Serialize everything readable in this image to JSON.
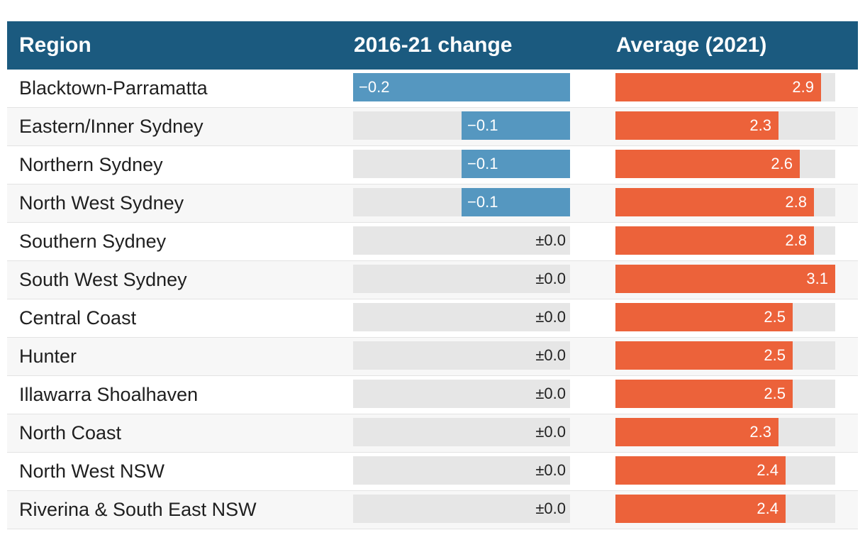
{
  "header": {
    "region": "Region",
    "change": "2016-21 change",
    "average": "Average (2021)"
  },
  "colors": {
    "header_bg": "#1b5a7f",
    "negative_bar": "#5597c0",
    "average_bar": "#ec623a",
    "track": "#e6e6e6"
  },
  "chart_data": {
    "type": "table",
    "columns": [
      "Region",
      "2016-21 change",
      "Average (2021)"
    ],
    "change_range": [
      -0.2,
      0
    ],
    "average_range": [
      0,
      3.1
    ],
    "rows": [
      {
        "region": "Blacktown-Parramatta",
        "change": -0.2,
        "change_label": "−0.2",
        "average": 2.9,
        "average_label": "2.9"
      },
      {
        "region": "Eastern/Inner Sydney",
        "change": -0.1,
        "change_label": "−0.1",
        "average": 2.3,
        "average_label": "2.3"
      },
      {
        "region": "Northern Sydney",
        "change": -0.1,
        "change_label": "−0.1",
        "average": 2.6,
        "average_label": "2.6"
      },
      {
        "region": "North West Sydney",
        "change": -0.1,
        "change_label": "−0.1",
        "average": 2.8,
        "average_label": "2.8"
      },
      {
        "region": "Southern Sydney",
        "change": 0.0,
        "change_label": "±0.0",
        "average": 2.8,
        "average_label": "2.8"
      },
      {
        "region": "South West Sydney",
        "change": 0.0,
        "change_label": "±0.0",
        "average": 3.1,
        "average_label": "3.1"
      },
      {
        "region": "Central Coast",
        "change": 0.0,
        "change_label": "±0.0",
        "average": 2.5,
        "average_label": "2.5"
      },
      {
        "region": "Hunter",
        "change": 0.0,
        "change_label": "±0.0",
        "average": 2.5,
        "average_label": "2.5"
      },
      {
        "region": "Illawarra Shoalhaven",
        "change": 0.0,
        "change_label": "±0.0",
        "average": 2.5,
        "average_label": "2.5"
      },
      {
        "region": "North Coast",
        "change": 0.0,
        "change_label": "±0.0",
        "average": 2.3,
        "average_label": "2.3"
      },
      {
        "region": "North West NSW",
        "change": 0.0,
        "change_label": "±0.0",
        "average": 2.4,
        "average_label": "2.4"
      },
      {
        "region": "Riverina & South East NSW",
        "change": 0.0,
        "change_label": "±0.0",
        "average": 2.4,
        "average_label": "2.4"
      }
    ]
  }
}
